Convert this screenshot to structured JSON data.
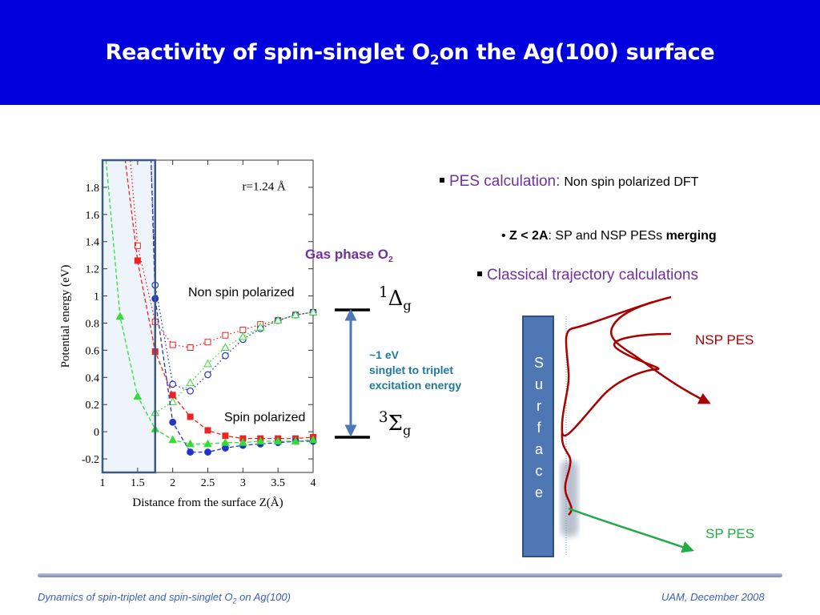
{
  "slide": {
    "title_main": "Reactivity of spin-singlet O",
    "title_sub": "2",
    "title_rest": "on the Ag(100) surface"
  },
  "colors": {
    "header_bg": "#0000dd",
    "accent_purple": "#7030a0",
    "accent_teal": "#1f7a9a",
    "nsp_red": "#aa0000",
    "sp_green": "#22aa44",
    "surface_blue": "#4e77b3"
  },
  "chart_data": {
    "type": "line",
    "title": "r=1.24 Å",
    "xlabel": "Distance from the surface Z(Å)",
    "ylabel": "Potential energy (eV)",
    "xlim": [
      1,
      4
    ],
    "ylim": [
      -0.3,
      2.0
    ],
    "xticks": [
      "1",
      "1.5",
      "2",
      "2.5",
      "3",
      "3.5",
      "4"
    ],
    "yticks": [
      "-0.2",
      "0",
      "0.2",
      "0.4",
      "0.6",
      "0.8",
      "1",
      "1.2",
      "1.4",
      "1.6",
      "1.8"
    ],
    "highlight_region": [
      1.0,
      1.75
    ],
    "series": [
      {
        "color": "#ee2222",
        "marker": "square-open",
        "line": "dotted",
        "x": [
          1.5,
          1.75,
          2.0,
          2.25,
          2.5,
          2.75,
          3.0,
          3.25,
          3.5,
          3.75,
          4.0
        ],
        "y": [
          1.37,
          0.81,
          0.64,
          0.62,
          0.66,
          0.71,
          0.75,
          0.79,
          0.82,
          0.86,
          0.88
        ]
      },
      {
        "color": "#2233cc",
        "marker": "circle-open",
        "line": "dotted",
        "x": [
          1.75,
          2.0,
          2.25,
          2.5,
          2.75,
          3.0,
          3.25,
          3.5,
          3.75,
          4.0
        ],
        "y": [
          1.08,
          0.35,
          0.3,
          0.42,
          0.56,
          0.68,
          0.76,
          0.82,
          0.86,
          0.88
        ]
      },
      {
        "color": "#33dd33",
        "marker": "triangle-open",
        "line": "dotted",
        "x": [
          1.75,
          2.0,
          2.25,
          2.5,
          2.75,
          3.0,
          3.25,
          3.5,
          3.75,
          4.0
        ],
        "y": [
          0.14,
          0.22,
          0.36,
          0.5,
          0.62,
          0.7,
          0.77,
          0.82,
          0.86,
          0.88
        ]
      },
      {
        "color": "#ee2222",
        "marker": "square-filled",
        "line": "dashed",
        "x": [
          1.5,
          1.75,
          2.0,
          2.25,
          2.5,
          2.75,
          3.0,
          3.25,
          3.5,
          3.75,
          4.0
        ],
        "y": [
          1.26,
          0.59,
          0.27,
          0.11,
          0.01,
          -0.03,
          -0.05,
          -0.05,
          -0.05,
          -0.05,
          -0.04
        ]
      },
      {
        "color": "#2233cc",
        "marker": "circle-filled",
        "line": "dashed",
        "x": [
          1.75,
          2.0,
          2.25,
          2.5,
          2.75,
          3.0,
          3.25,
          3.5,
          3.75,
          4.0
        ],
        "y": [
          0.98,
          0.07,
          -0.15,
          -0.15,
          -0.12,
          -0.1,
          -0.09,
          -0.08,
          -0.07,
          -0.07
        ]
      },
      {
        "color": "#33dd33",
        "marker": "triangle-filled",
        "line": "dashed",
        "x": [
          1.25,
          1.5,
          1.75,
          2.0,
          2.25,
          2.5,
          2.75,
          3.0,
          3.25,
          3.5,
          3.75,
          4.0
        ],
        "y": [
          0.85,
          0.26,
          0.02,
          -0.06,
          -0.09,
          -0.09,
          -0.08,
          -0.08,
          -0.07,
          -0.07,
          -0.07,
          -0.06
        ]
      }
    ]
  },
  "annotations": {
    "non_spin_polarized": "Non spin polarized",
    "spin_polarized": "Spin polarized",
    "gas_phase": "Gas phase O",
    "gas_phase_sub": "2",
    "delta_sup": "1",
    "delta_symbol": "Δ",
    "delta_sub": "g",
    "sigma_sup": "3",
    "sigma_symbol": "Σ",
    "sigma_sub": "g",
    "energy_line1": "~1 eV",
    "energy_line2": "singlet to triplet",
    "energy_line3": "excitation energy"
  },
  "bullets": {
    "pes_label": "PES calculation:",
    "pes_text": "Non spin polarized DFT",
    "z_label": "Z < 2A",
    "z_text": ": SP and NSP PESs ",
    "z_bold": "merging",
    "classical": "Classical trajectory calculations"
  },
  "schematic": {
    "surface_letters": [
      "S",
      "u",
      "r",
      "f",
      "a",
      "c",
      "e"
    ],
    "nsp_label": "NSP PES",
    "sp_label": "SP PES"
  },
  "footer": {
    "left_main": "Dynamics of spin-triplet and spin-singlet O",
    "left_sub": "2",
    "left_rest": " on Ag(100)",
    "right": "UAM, December 2008"
  }
}
